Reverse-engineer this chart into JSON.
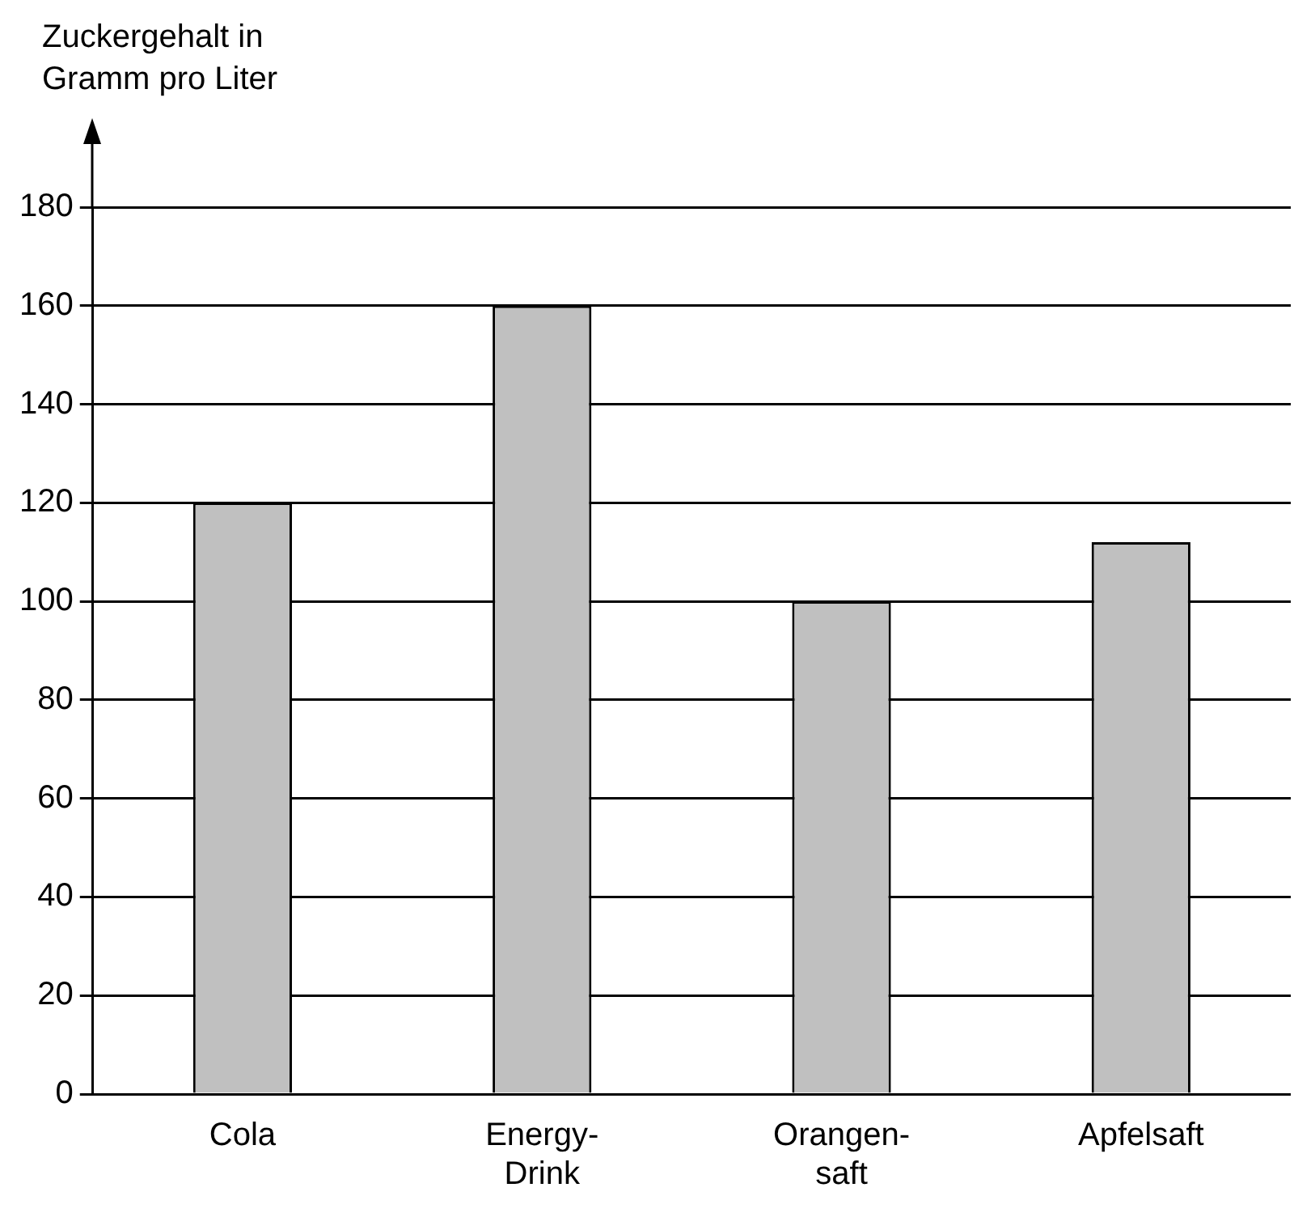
{
  "chart_data": {
    "type": "bar",
    "ylabel": "Zuckergehalt in\nGramm pro Liter",
    "categories": [
      "Cola",
      "Energy-\nDrink",
      "Orangen-\nsaft",
      "Apfelsaft"
    ],
    "values": [
      120,
      160,
      100,
      112
    ],
    "color": "#c0c0c0",
    "ylim": [
      0,
      180
    ],
    "yticks": [
      0,
      20,
      40,
      60,
      80,
      100,
      120,
      140,
      160,
      180
    ],
    "grid": "y"
  }
}
